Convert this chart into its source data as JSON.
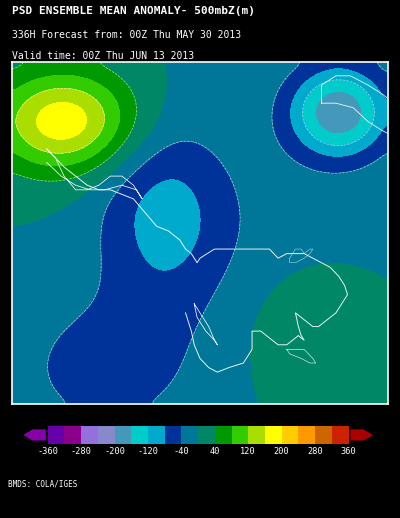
{
  "title_line1": "PSD ENSEMBLE MEAN ANOMALY- 500mbZ(m)",
  "title_line2": "336H Forecast from: 00Z Thu MAY 30 2013",
  "title_line3": "Valid time: 00Z Thu JUN 13 2013",
  "credit": "BMDS: COLA/IGES",
  "bg_color": "#000000",
  "map_bg_color": "#006060",
  "colorbar_values": [
    -360,
    -280,
    -200,
    -120,
    -40,
    40,
    120,
    200,
    280,
    360
  ],
  "cb_colors": [
    "#6600AA",
    "#8B008B",
    "#9370DB",
    "#8888CC",
    "#4499BB",
    "#00CCCC",
    "#00AACC",
    "#003399",
    "#007799",
    "#008866",
    "#009900",
    "#33CC00",
    "#AADD00",
    "#FFFF00",
    "#FFCC00",
    "#FF9900",
    "#CC6600",
    "#CC2200"
  ],
  "title_color": "#FFFFFF",
  "tick_color": "#FFFFFF",
  "font_family": "monospace"
}
